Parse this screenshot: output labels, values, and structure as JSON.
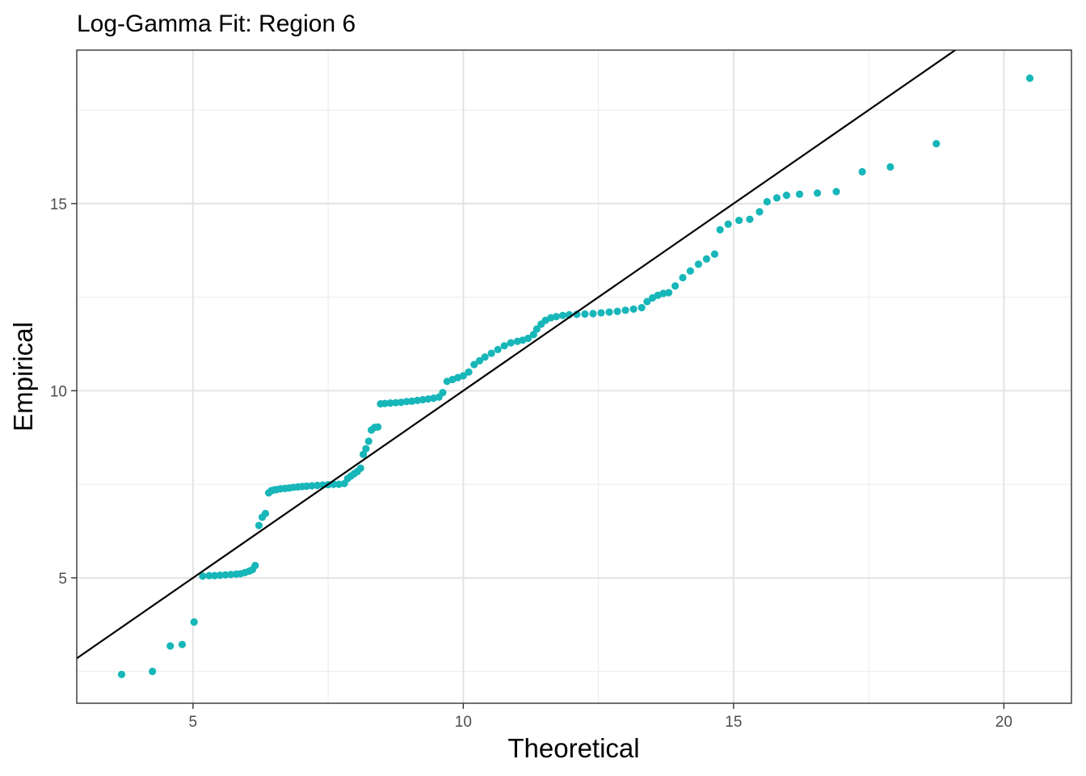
{
  "chart_data": {
    "type": "scatter",
    "title": "Log-Gamma Fit: Region 6",
    "xlabel": "Theoretical",
    "ylabel": "Empirical",
    "xlim": [
      2.85,
      21.25
    ],
    "ylim": [
      1.65,
      19.1
    ],
    "x_ticks": [
      5,
      10,
      15,
      20
    ],
    "x_tick_labels": [
      "5",
      "10",
      "15",
      "20"
    ],
    "y_ticks": [
      5,
      10,
      15
    ],
    "y_tick_labels": [
      "5",
      "10",
      "15"
    ],
    "grid": true,
    "legend": "none",
    "point_color": "#17b6b9",
    "reference_line": {
      "description": "y = x",
      "slope": 1,
      "intercept": 0,
      "color": "#000000"
    },
    "points": [
      [
        3.68,
        2.42
      ],
      [
        4.25,
        2.5
      ],
      [
        4.58,
        3.18
      ],
      [
        4.8,
        3.22
      ],
      [
        5.02,
        3.82
      ],
      [
        5.18,
        5.05
      ],
      [
        5.3,
        5.06
      ],
      [
        5.4,
        5.06
      ],
      [
        5.5,
        5.07
      ],
      [
        5.6,
        5.08
      ],
      [
        5.7,
        5.09
      ],
      [
        5.8,
        5.1
      ],
      [
        5.88,
        5.11
      ],
      [
        5.96,
        5.14
      ],
      [
        6.04,
        5.18
      ],
      [
        6.1,
        5.22
      ],
      [
        6.15,
        5.33
      ],
      [
        6.22,
        6.4
      ],
      [
        6.28,
        6.62
      ],
      [
        6.34,
        6.72
      ],
      [
        6.4,
        7.27
      ],
      [
        6.45,
        7.33
      ],
      [
        6.5,
        7.35
      ],
      [
        6.55,
        7.36
      ],
      [
        6.62,
        7.38
      ],
      [
        6.7,
        7.39
      ],
      [
        6.78,
        7.4
      ],
      [
        6.86,
        7.42
      ],
      [
        6.94,
        7.43
      ],
      [
        7.02,
        7.44
      ],
      [
        7.1,
        7.45
      ],
      [
        7.2,
        7.46
      ],
      [
        7.3,
        7.47
      ],
      [
        7.4,
        7.48
      ],
      [
        7.5,
        7.49
      ],
      [
        7.6,
        7.5
      ],
      [
        7.7,
        7.5
      ],
      [
        7.8,
        7.52
      ],
      [
        7.86,
        7.65
      ],
      [
        7.92,
        7.72
      ],
      [
        7.98,
        7.78
      ],
      [
        8.04,
        7.84
      ],
      [
        8.1,
        7.93
      ],
      [
        8.15,
        8.3
      ],
      [
        8.2,
        8.45
      ],
      [
        8.25,
        8.65
      ],
      [
        8.3,
        8.95
      ],
      [
        8.36,
        9.02
      ],
      [
        8.42,
        9.03
      ],
      [
        8.47,
        9.65
      ],
      [
        8.55,
        9.66
      ],
      [
        8.65,
        9.67
      ],
      [
        8.75,
        9.68
      ],
      [
        8.85,
        9.69
      ],
      [
        8.95,
        9.71
      ],
      [
        9.05,
        9.72
      ],
      [
        9.15,
        9.74
      ],
      [
        9.25,
        9.76
      ],
      [
        9.35,
        9.78
      ],
      [
        9.45,
        9.8
      ],
      [
        9.55,
        9.83
      ],
      [
        9.62,
        9.95
      ],
      [
        9.7,
        10.25
      ],
      [
        9.8,
        10.3
      ],
      [
        9.9,
        10.35
      ],
      [
        10.0,
        10.4
      ],
      [
        10.1,
        10.5
      ],
      [
        10.2,
        10.7
      ],
      [
        10.3,
        10.8
      ],
      [
        10.4,
        10.9
      ],
      [
        10.52,
        11.0
      ],
      [
        10.64,
        11.1
      ],
      [
        10.76,
        11.2
      ],
      [
        10.88,
        11.28
      ],
      [
        11.0,
        11.32
      ],
      [
        11.1,
        11.35
      ],
      [
        11.2,
        11.4
      ],
      [
        11.3,
        11.5
      ],
      [
        11.36,
        11.65
      ],
      [
        11.44,
        11.78
      ],
      [
        11.52,
        11.88
      ],
      [
        11.62,
        11.95
      ],
      [
        11.72,
        11.98
      ],
      [
        11.84,
        12.01
      ],
      [
        11.96,
        12.03
      ],
      [
        12.1,
        12.04
      ],
      [
        12.25,
        12.05
      ],
      [
        12.4,
        12.06
      ],
      [
        12.55,
        12.08
      ],
      [
        12.7,
        12.1
      ],
      [
        12.85,
        12.12
      ],
      [
        13.0,
        12.15
      ],
      [
        13.15,
        12.18
      ],
      [
        13.3,
        12.22
      ],
      [
        13.4,
        12.38
      ],
      [
        13.5,
        12.48
      ],
      [
        13.6,
        12.55
      ],
      [
        13.7,
        12.6
      ],
      [
        13.8,
        12.62
      ],
      [
        13.92,
        12.8
      ],
      [
        14.06,
        13.02
      ],
      [
        14.2,
        13.2
      ],
      [
        14.35,
        13.38
      ],
      [
        14.5,
        13.52
      ],
      [
        14.65,
        13.65
      ],
      [
        14.75,
        14.3
      ],
      [
        14.9,
        14.45
      ],
      [
        15.1,
        14.55
      ],
      [
        15.3,
        14.58
      ],
      [
        15.48,
        14.78
      ],
      [
        15.62,
        15.05
      ],
      [
        15.8,
        15.15
      ],
      [
        15.98,
        15.22
      ],
      [
        16.22,
        15.25
      ],
      [
        16.55,
        15.28
      ],
      [
        16.9,
        15.32
      ],
      [
        17.38,
        15.85
      ],
      [
        17.9,
        15.98
      ],
      [
        18.75,
        16.6
      ],
      [
        20.48,
        18.35
      ]
    ]
  }
}
